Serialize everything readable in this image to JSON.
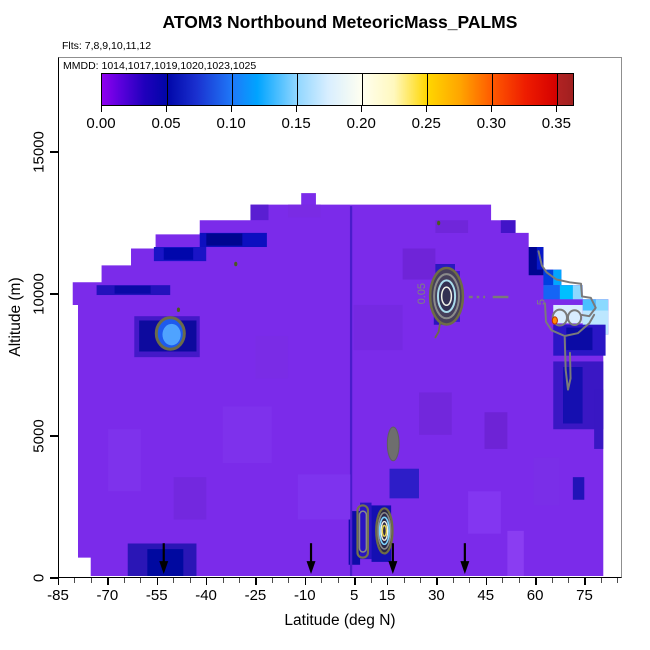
{
  "title": "ATOM3 Northbound MeteoricMass_PALMS",
  "subtitle": "Flts: 7,8,9,10,11,12",
  "legend": {
    "label": "MMDD: 1014,1017,1019,1020,1023,1025",
    "tick_labels": [
      "0.00",
      "0.05",
      "0.10",
      "0.15",
      "0.20",
      "0.25",
      "0.30",
      "0.35"
    ],
    "tick_values": [
      0,
      0.05,
      0.1,
      0.15,
      0.2,
      0.25,
      0.3,
      0.35
    ],
    "bar_value_max": 0.362,
    "gradient": [
      {
        "p": 0,
        "c": "#8F00F0"
      },
      {
        "p": 4,
        "c": "#5A00DC"
      },
      {
        "p": 9,
        "c": "#2000BC"
      },
      {
        "p": 13.8,
        "c": "#0006A8"
      },
      {
        "p": 20,
        "c": "#1A30CF"
      },
      {
        "p": 27.6,
        "c": "#1F78F8"
      },
      {
        "p": 33,
        "c": "#00A4FF"
      },
      {
        "p": 41.4,
        "c": "#90D6FF"
      },
      {
        "p": 48,
        "c": "#D8EEFF"
      },
      {
        "p": 55.2,
        "c": "#FFFFF0"
      },
      {
        "p": 62,
        "c": "#FFF8BE"
      },
      {
        "p": 69,
        "c": "#FFD700"
      },
      {
        "p": 76,
        "c": "#FFA500"
      },
      {
        "p": 82.8,
        "c": "#FF5A00"
      },
      {
        "p": 90,
        "c": "#EE1C00"
      },
      {
        "p": 96.6,
        "c": "#D40000"
      },
      {
        "p": 96.7,
        "c": "#B22222"
      },
      {
        "p": 100,
        "c": "#A02020"
      }
    ]
  },
  "axes": {
    "x": {
      "label": "Latitude (deg N)",
      "ticks": [
        {
          "v": -85,
          "label": "-85"
        },
        {
          "v": -70,
          "label": "-70"
        },
        {
          "v": -55,
          "label": "-55"
        },
        {
          "v": -40,
          "label": "-40"
        },
        {
          "v": -25,
          "label": "-25"
        },
        {
          "v": -10,
          "label": "-10"
        },
        {
          "v": 5,
          "label": "5"
        },
        {
          "v": 15,
          "label": "15"
        },
        {
          "v": 30,
          "label": "30"
        },
        {
          "v": 45,
          "label": "45"
        },
        {
          "v": 60,
          "label": "60"
        },
        {
          "v": 75,
          "label": "75"
        }
      ],
      "minor_step": 5,
      "minor_range": [
        -85,
        85
      ]
    },
    "y": {
      "label": "Altitude (m)",
      "ticks": [
        {
          "v": 0,
          "label": "0"
        },
        {
          "v": 5000,
          "label": "5000"
        },
        {
          "v": 10000,
          "label": "10000"
        },
        {
          "v": 15000,
          "label": "15000"
        }
      ]
    }
  },
  "chart_data": {
    "type": "heatmap",
    "title": "ATOM3 Northbound MeteoricMass_PALMS",
    "xlabel": "Latitude (deg N)",
    "ylabel": "Altitude (m)",
    "x_range": [
      -85,
      86.4
    ],
    "y_range": [
      0,
      18345
    ],
    "value_scale": {
      "min": 0,
      "max": 0.362,
      "tick_step": 0.05
    },
    "base_value_color": "#7B2BEA",
    "arrows_lat": [
      -53,
      -8,
      17,
      39
    ],
    "dome_polygon": [
      [
        -75.3,
        0
      ],
      [
        -75.3,
        650
      ],
      [
        -79.2,
        650
      ],
      [
        -79.2,
        9600
      ],
      [
        -80.8,
        9600
      ],
      [
        -80.8,
        10400
      ],
      [
        -72,
        10400
      ],
      [
        -72,
        11000
      ],
      [
        -63,
        11000
      ],
      [
        -63,
        11600
      ],
      [
        -55.5,
        11600
      ],
      [
        -55.5,
        12100
      ],
      [
        -42,
        12100
      ],
      [
        -42,
        12600
      ],
      [
        -26.5,
        12600
      ],
      [
        -26.5,
        13150
      ],
      [
        -11,
        13150
      ],
      [
        -11,
        13560
      ],
      [
        -6.5,
        13560
      ],
      [
        -6.5,
        13150
      ],
      [
        47,
        13150
      ],
      [
        47,
        12600
      ],
      [
        54.5,
        12600
      ],
      [
        54.5,
        12150
      ],
      [
        58.5,
        12150
      ],
      [
        58.5,
        11650
      ],
      [
        63,
        11650
      ],
      [
        63,
        10850
      ],
      [
        68.5,
        10850
      ],
      [
        68.5,
        10300
      ],
      [
        75,
        10300
      ],
      [
        75,
        9800
      ],
      [
        82.8,
        9800
      ],
      [
        82.8,
        8550
      ],
      [
        81.3,
        8550
      ],
      [
        81.3,
        0
      ]
    ],
    "regions": [
      {
        "x0": -56,
        "y0": 11150,
        "x1": -40,
        "y1": 11650,
        "c": "#1A14C6"
      },
      {
        "x0": -53,
        "y0": 11200,
        "x1": -44,
        "y1": 11620,
        "c": "#0007AC"
      },
      {
        "x0": -42,
        "y0": 11650,
        "x1": -21.5,
        "y1": 12150,
        "c": "#0D0FC0"
      },
      {
        "x0": -40,
        "y0": 11700,
        "x1": -29,
        "y1": 12130,
        "c": "#000590"
      },
      {
        "x0": -26.5,
        "y0": 12600,
        "x1": -21,
        "y1": 13150,
        "c": "#5A1ED2"
      },
      {
        "x0": -73.5,
        "y0": 9950,
        "x1": -51,
        "y1": 10300,
        "c": "#2312BC"
      },
      {
        "x0": -68,
        "y0": 10000,
        "x1": -57,
        "y1": 10280,
        "c": "#0A0AA6"
      },
      {
        "x0": -62,
        "y0": 7750,
        "x1": -42,
        "y1": 9200,
        "c": "#4419C8"
      },
      {
        "x0": -60.5,
        "y0": 7950,
        "x1": -43,
        "y1": 9050,
        "c": "#0D0A9E"
      },
      {
        "x0": 29.5,
        "y0": 8900,
        "x1": 33,
        "y1": 10600,
        "c": "#2A14BE"
      },
      {
        "x0": 33,
        "y0": 9000,
        "x1": 37.5,
        "y1": 10800,
        "c": "#3A1ACF"
      },
      {
        "x0": 29,
        "y0": 10600,
        "x1": 36,
        "y1": 11050,
        "c": "#2919BF"
      },
      {
        "x0": 50,
        "y0": 12150,
        "x1": 54.5,
        "y1": 12600,
        "c": "#4214C8"
      },
      {
        "x0": 58.5,
        "y0": 10650,
        "x1": 63,
        "y1": 11650,
        "c": "#000592"
      },
      {
        "x0": 61,
        "y0": 10850,
        "x1": 63,
        "y1": 11650,
        "c": "#0718C8"
      },
      {
        "x0": 63,
        "y0": 10300,
        "x1": 66,
        "y1": 10850,
        "c": "#0040E0"
      },
      {
        "x0": 66,
        "y0": 10300,
        "x1": 68.5,
        "y1": 10850,
        "c": "#00A6FF"
      },
      {
        "x0": 63,
        "y0": 9800,
        "x1": 68,
        "y1": 10300,
        "c": "#1565F5"
      },
      {
        "x0": 68,
        "y0": 9800,
        "x1": 72,
        "y1": 10300,
        "c": "#00BFFF"
      },
      {
        "x0": 72,
        "y0": 9800,
        "x1": 75,
        "y1": 10300,
        "c": "#8ED8FF"
      },
      {
        "x0": 75,
        "y0": 9400,
        "x1": 79,
        "y1": 9800,
        "c": "#49C0FF"
      },
      {
        "x0": 79,
        "y0": 8900,
        "x1": 82.8,
        "y1": 9800,
        "c": "#8AD9FF"
      },
      {
        "x0": 75,
        "y0": 8550,
        "x1": 82.8,
        "y1": 9400,
        "c": "#BCE7FF"
      },
      {
        "x0": 66,
        "y0": 8950,
        "x1": 75,
        "y1": 9600,
        "c": "#D8ECFF"
      },
      {
        "x0": 66,
        "y0": 7800,
        "x1": 82,
        "y1": 8900,
        "c": "#2A16C5"
      },
      {
        "x0": 70,
        "y0": 8000,
        "x1": 78,
        "y1": 8800,
        "c": "#0B0BA5"
      },
      {
        "x0": 66,
        "y0": 5200,
        "x1": 81.3,
        "y1": 7600,
        "c": "#3A17C4"
      },
      {
        "x0": 69,
        "y0": 5400,
        "x1": 75,
        "y1": 7400,
        "c": "#150FB0"
      },
      {
        "x0": 78.5,
        "y0": 4500,
        "x1": 81.3,
        "y1": 6600,
        "c": "#3917C3"
      },
      {
        "x0": 72,
        "y0": 2700,
        "x1": 75.5,
        "y1": 3500,
        "c": "#2113B8"
      },
      {
        "x0": 3.5,
        "y0": 400,
        "x1": 7,
        "y1": 2300,
        "c": "#0E0CA8"
      },
      {
        "x0": 7,
        "y0": 600,
        "x1": 10.5,
        "y1": 2600,
        "c": "#2A14C2"
      },
      {
        "x0": 10.5,
        "y0": 500,
        "x1": 16.5,
        "y1": 2500,
        "c": "#140FB2"
      },
      {
        "x0": 16,
        "y0": 2750,
        "x1": 25,
        "y1": 3800,
        "c": "#2D1DC8"
      },
      {
        "x0": 3.9,
        "y0": 0,
        "x1": 4.6,
        "y1": 13100,
        "c": "#4A1CCB"
      },
      {
        "x0": -64,
        "y0": 0,
        "x1": -43,
        "y1": 1150,
        "c": "#2A16B6"
      },
      {
        "x0": -58,
        "y0": 0,
        "x1": -47,
        "y1": 950,
        "c": "#0009A0"
      },
      {
        "x0": -35,
        "y0": 4000,
        "x1": -20,
        "y1": 6000,
        "c": "#7E31EC"
      },
      {
        "x0": 5,
        "y0": 8000,
        "x1": 20,
        "y1": 9600,
        "c": "#7529E2"
      },
      {
        "x0": -12,
        "y0": 2000,
        "x1": 4,
        "y1": 3600,
        "c": "#7E33EE"
      },
      {
        "x0": 40,
        "y0": 1500,
        "x1": 50,
        "y1": 3000,
        "c": "#8336F1"
      },
      {
        "x0": 25,
        "y0": 5000,
        "x1": 35,
        "y1": 6500,
        "c": "#7227DC"
      },
      {
        "x0": 52,
        "y0": 0,
        "x1": 57,
        "y1": 1600,
        "c": "#8A3DF2"
      },
      {
        "x0": -70,
        "y0": 3000,
        "x1": -60,
        "y1": 5200,
        "c": "#7E32EC"
      },
      {
        "x0": 20,
        "y0": 10500,
        "x1": 30,
        "y1": 11600,
        "c": "#6F24D8"
      },
      {
        "x0": 45,
        "y0": 4500,
        "x1": 52,
        "y1": 5800,
        "c": "#6E23D6"
      },
      {
        "x0": -50,
        "y0": 2000,
        "x1": -40,
        "y1": 3500,
        "c": "#7328DF"
      },
      {
        "x0": -25,
        "y0": 7000,
        "x1": -15,
        "y1": 8500,
        "c": "#7A2CE6"
      },
      {
        "x0": 60,
        "y0": 2500,
        "x1": 68,
        "y1": 4200,
        "c": "#7A2EE8"
      },
      {
        "x0": 30,
        "y0": 12150,
        "x1": 40,
        "y1": 12600,
        "c": "#7026DA"
      },
      {
        "x0": -15,
        "y0": 12700,
        "x1": -5,
        "y1": 13150,
        "c": "#7A2BE4"
      }
    ],
    "ellipses": [
      {
        "cx": -51,
        "cy": 8590,
        "rx": 4.3,
        "ry": 560,
        "fill": "#1E5AEE",
        "stroke": "#6B6B4A",
        "w": 3
      },
      {
        "cx": -50.6,
        "cy": 8550,
        "rx": 2.8,
        "ry": 380,
        "fill": "#4FA3FF",
        "stroke": "none",
        "w": 0
      },
      {
        "cx": 33.4,
        "cy": 9910,
        "rx": 5.0,
        "ry": 1000,
        "fill": "#463F5A",
        "stroke": "#6E6C45",
        "w": 2.5
      },
      {
        "cx": 33.4,
        "cy": 9910,
        "rx": 3.8,
        "ry": 780,
        "fill": "none",
        "stroke": "#8A8A8A",
        "w": 2
      },
      {
        "cx": 33.4,
        "cy": 9910,
        "rx": 2.6,
        "ry": 560,
        "fill": "#333052",
        "stroke": "#AADCEC",
        "w": 2
      },
      {
        "cx": 33.4,
        "cy": 9910,
        "rx": 1.5,
        "ry": 320,
        "fill": "none",
        "stroke": "#F2F2E8",
        "w": 1.5
      },
      {
        "cx": 68,
        "cy": 9150,
        "rx": 2.2,
        "ry": 280,
        "fill": "none",
        "stroke": "#7A7A7A",
        "w": 2
      },
      {
        "cx": 72.5,
        "cy": 9150,
        "rx": 2.0,
        "ry": 260,
        "fill": "none",
        "stroke": "#7A7A7A",
        "w": 2
      },
      {
        "cx": 66.5,
        "cy": 9050,
        "rx": 0.8,
        "ry": 130,
        "fill": "#FF8C00",
        "stroke": "#C03000",
        "w": 1
      },
      {
        "cx": 14.4,
        "cy": 1600,
        "rx": 2.5,
        "ry": 800,
        "fill": "#2A2646",
        "stroke": "#6E6C45",
        "w": 2.2
      },
      {
        "cx": 14.4,
        "cy": 1600,
        "rx": 1.9,
        "ry": 640,
        "fill": "none",
        "stroke": "#8A8A8A",
        "w": 1.6
      },
      {
        "cx": 14.4,
        "cy": 1600,
        "rx": 1.45,
        "ry": 480,
        "fill": "none",
        "stroke": "#7FD4FF",
        "w": 1.6
      },
      {
        "cx": 14.4,
        "cy": 1600,
        "rx": 1.0,
        "ry": 330,
        "fill": "none",
        "stroke": "#F0F0E6",
        "w": 1.4
      },
      {
        "cx": 14.4,
        "cy": 1600,
        "rx": 0.6,
        "ry": 190,
        "fill": "none",
        "stroke": "#E8D44D",
        "w": 1.4
      },
      {
        "cx": 17.1,
        "cy": 4680,
        "rx": 1.8,
        "ry": 600,
        "fill": "#6E6E6E",
        "stroke": "#5E5E5E",
        "w": 1
      },
      {
        "cx": 31,
        "cy": 12500,
        "rx": 0.5,
        "ry": 80,
        "fill": "#4A5A20",
        "stroke": "none",
        "w": 0
      },
      {
        "cx": -31,
        "cy": 11050,
        "rx": 0.5,
        "ry": 80,
        "fill": "#4A5A20",
        "stroke": "none",
        "w": 0
      },
      {
        "cx": -48.5,
        "cy": 9430,
        "rx": 0.5,
        "ry": 80,
        "fill": "#4A5A20",
        "stroke": "none",
        "w": 0
      }
    ],
    "rings": [
      {
        "x0": 6.2,
        "y0": 650,
        "x1": 9.4,
        "y1": 2500,
        "stroke": "#74724E",
        "w": 2.2,
        "r": 5
      },
      {
        "x0": 6.8,
        "y0": 850,
        "x1": 8.9,
        "y1": 2300,
        "stroke": "#8A8A8A",
        "w": 1.5,
        "r": 4
      }
    ],
    "paths": [
      {
        "stroke": "#7A7A7A",
        "w": 2,
        "pts": [
          [
            61.5,
            11500
          ],
          [
            62.5,
            11000
          ],
          [
            64,
            10750
          ],
          [
            67,
            10500
          ],
          [
            71,
            10400
          ],
          [
            74.5,
            10350
          ],
          [
            74.8,
            9900
          ],
          [
            77.5,
            9850
          ],
          [
            79,
            9500
          ],
          [
            77,
            9200
          ],
          [
            74.5,
            9250
          ]
        ]
      },
      {
        "stroke": "#7A7A7A",
        "w": 2,
        "pts": [
          [
            63.5,
            9650
          ],
          [
            63.8,
            9000
          ],
          [
            65.5,
            8700
          ],
          [
            69.5,
            8500
          ],
          [
            73.5,
            8600
          ],
          [
            77,
            8950
          ],
          [
            78.5,
            9250
          ]
        ]
      },
      {
        "stroke": "#7A7A7A",
        "w": 2,
        "pts": [
          [
            69.5,
            8450
          ],
          [
            69.8,
            7300
          ],
          [
            70.5,
            6600
          ],
          [
            71.3,
            7000
          ],
          [
            71.1,
            7900
          ]
        ]
      },
      {
        "stroke": "#6E6C45",
        "w": 1.8,
        "pts": [
          [
            31.5,
            9000
          ],
          [
            31,
            8650
          ],
          [
            30,
            8450
          ]
        ]
      }
    ],
    "dashes": [
      {
        "alt": 9880,
        "stroke": "#7A7A7A",
        "w": 2.5,
        "segs": [
          [
            40.2,
            41.4
          ],
          [
            42.6,
            43.4
          ],
          [
            44.6,
            45.2
          ],
          [
            47.5,
            52.3
          ]
        ]
      }
    ],
    "contour_labels": [
      {
        "x": 26.8,
        "y": 10000,
        "text": "0.05",
        "rot": -90,
        "size": 11,
        "color": "#808080"
      },
      {
        "x": 63.4,
        "y": 9700,
        "text": "5",
        "rot": -90,
        "size": 11,
        "color": "#808080"
      }
    ]
  }
}
